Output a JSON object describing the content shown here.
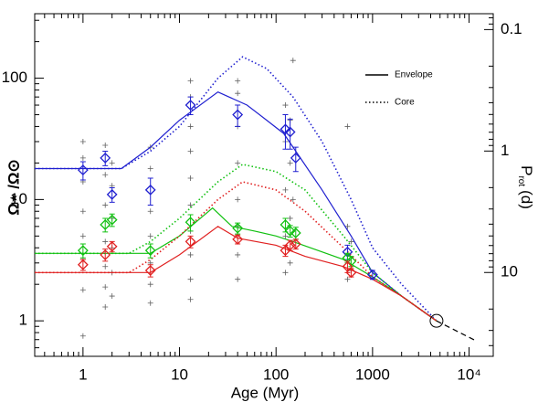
{
  "chart_data": {
    "type": "line",
    "xscale": "log",
    "yscale": "log",
    "xlabel": "Age (Myr)",
    "ylabel": "Ω⋆ /Ω⊙",
    "y2label": {
      "main": "P",
      "sub": "rot",
      "unit": "(d)"
    },
    "xlim": [
      0.316,
      17800
    ],
    "ylim": [
      0.51,
      340
    ],
    "y2lim": [
      49,
      0.074
    ],
    "xticks": [
      1,
      10,
      100,
      1000,
      {
        "value": 10000,
        "label": "10⁴"
      }
    ],
    "yticks": [
      1,
      10,
      100
    ],
    "y2ticks": [
      0.1,
      1,
      10
    ],
    "legend": [
      {
        "label": "Envelope",
        "dash": "solid"
      },
      {
        "label": "Core",
        "dash": "dotted"
      }
    ],
    "series": [
      {
        "color": "#2020d0",
        "dash": "solid",
        "x": [
          0.316,
          2.5,
          5,
          10,
          25,
          50,
          80,
          120,
          160,
          300,
          600,
          1000,
          2000,
          4600
        ],
        "values": [
          18,
          18,
          27,
          45,
          77,
          60,
          45,
          35,
          25,
          12,
          5,
          2.5,
          1.6,
          1
        ]
      },
      {
        "color": "#2020d0",
        "dash": "dotted",
        "x": [
          0.316,
          2.5,
          5,
          10,
          25,
          45,
          80,
          150,
          300,
          600,
          1000,
          2000,
          4600
        ],
        "values": [
          18,
          18,
          25,
          40,
          100,
          150,
          120,
          70,
          30,
          10,
          4,
          2,
          1
        ]
      },
      {
        "color": "#10c010",
        "dash": "solid",
        "x": [
          0.316,
          5,
          10,
          22,
          35,
          60,
          100,
          150,
          500,
          1000,
          2000,
          4600
        ],
        "values": [
          3.6,
          3.6,
          5,
          8.5,
          6,
          5.5,
          5,
          4.5,
          3.2,
          2.3,
          1.6,
          1
        ]
      },
      {
        "color": "#10c010",
        "dash": "dotted",
        "x": [
          0.316,
          3,
          5,
          10,
          25,
          45,
          100,
          200,
          500,
          1000,
          2000,
          4600
        ],
        "values": [
          3.6,
          3.6,
          4.5,
          7,
          14,
          19.5,
          17,
          12,
          5,
          2.5,
          1.6,
          1
        ]
      },
      {
        "color": "#e02020",
        "dash": "solid",
        "x": [
          0.316,
          5,
          10,
          25,
          40,
          100,
          200,
          500,
          1000,
          2000,
          4600
        ],
        "values": [
          2.5,
          2.5,
          3.5,
          6,
          4.8,
          4.2,
          3.4,
          2.8,
          2.2,
          1.6,
          1
        ]
      },
      {
        "color": "#e02020",
        "dash": "dotted",
        "x": [
          0.316,
          3,
          5,
          10,
          25,
          45,
          100,
          200,
          500,
          1000,
          2000,
          4600
        ],
        "values": [
          2.5,
          2.5,
          3.2,
          5,
          10,
          14,
          12,
          8,
          4,
          2.3,
          1.6,
          1
        ]
      },
      {
        "color": "#000000",
        "dash": "dashed",
        "x": [
          4600,
          12000
        ],
        "values": [
          1,
          0.68
        ]
      }
    ],
    "points": [
      {
        "color": "#2020d0",
        "x": [
          1,
          1.7,
          2,
          5,
          13,
          40,
          125,
          140,
          160,
          550,
          1000
        ],
        "values": [
          17.5,
          22,
          11,
          12,
          60,
          50,
          38,
          36,
          22,
          3.7,
          2.4
        ],
        "errors": [
          3,
          3,
          1.5,
          3,
          10,
          10,
          12,
          10,
          5,
          0.5,
          0.2
        ]
      },
      {
        "color": "#10c010",
        "x": [
          1,
          1.7,
          2,
          5,
          13,
          40,
          125,
          140,
          160,
          550,
          600
        ],
        "values": [
          3.8,
          6.2,
          6.8,
          3.8,
          6.5,
          5.8,
          6.2,
          5.5,
          5.3,
          3.3,
          3.1
        ],
        "errors": [
          0.5,
          0.8,
          0.8,
          0.5,
          1,
          0.6,
          0.8,
          0.6,
          0.6,
          0.3,
          0.3
        ]
      },
      {
        "color": "#e02020",
        "x": [
          1,
          1.7,
          2,
          5,
          13,
          40,
          125,
          140,
          160,
          550,
          600
        ],
        "values": [
          2.9,
          3.5,
          4.1,
          2.6,
          4.5,
          4.7,
          3.8,
          4.2,
          4.3,
          2.8,
          2.5
        ],
        "errors": [
          0.3,
          0.4,
          0.4,
          0.3,
          0.5,
          0.4,
          0.4,
          0.4,
          0.4,
          0.3,
          0.2
        ]
      }
    ],
    "scatter": {
      "color": "#606060",
      "x": [
        1,
        1,
        1,
        1,
        1,
        1,
        1,
        1,
        1.7,
        1.7,
        1.7,
        1.7,
        1.7,
        1.7,
        1.7,
        2,
        2,
        2,
        2,
        2,
        2,
        5,
        5,
        5,
        5,
        5,
        5,
        5,
        13,
        13,
        13,
        13,
        13,
        13,
        13,
        13,
        13,
        13,
        40,
        40,
        40,
        40,
        40,
        40,
        40,
        40,
        125,
        125,
        125,
        125,
        125,
        140,
        140,
        140,
        140,
        150,
        150,
        550,
        550,
        550,
        550,
        600,
        600
      ],
      "values": [
        30,
        22,
        14,
        8,
        5,
        3.2,
        1.8,
        0.75,
        28,
        16,
        9,
        4.5,
        2.8,
        1.9,
        1.3,
        20,
        13,
        7,
        4,
        2.5,
        1.6,
        27,
        18,
        8,
        5,
        3,
        2,
        1.4,
        95,
        70,
        40,
        25,
        15,
        9,
        5.5,
        3.5,
        2.2,
        1.5,
        95,
        75,
        40,
        20,
        10,
        6,
        3.5,
        2.2,
        60,
        30,
        12,
        5,
        2.5,
        45,
        20,
        7,
        3,
        140,
        10,
        40,
        6,
        3.5,
        2.2,
        4.5,
        2.6
      ]
    }
  }
}
